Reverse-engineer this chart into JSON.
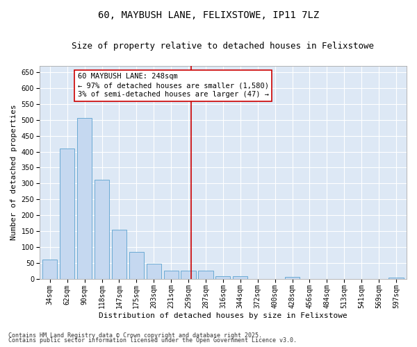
{
  "title1": "60, MAYBUSH LANE, FELIXSTOWE, IP11 7LZ",
  "title2": "Size of property relative to detached houses in Felixstowe",
  "xlabel": "Distribution of detached houses by size in Felixstowe",
  "ylabel": "Number of detached properties",
  "categories": [
    "34sqm",
    "62sqm",
    "90sqm",
    "118sqm",
    "147sqm",
    "175sqm",
    "203sqm",
    "231sqm",
    "259sqm",
    "287sqm",
    "316sqm",
    "344sqm",
    "372sqm",
    "400sqm",
    "428sqm",
    "456sqm",
    "484sqm",
    "513sqm",
    "541sqm",
    "569sqm",
    "597sqm"
  ],
  "values": [
    60,
    410,
    505,
    312,
    155,
    85,
    47,
    25,
    25,
    25,
    8,
    7,
    0,
    0,
    5,
    0,
    0,
    0,
    0,
    0,
    3
  ],
  "bar_color": "#c5d8f0",
  "bar_edge_color": "#6aaad4",
  "vline_x_index": 8.15,
  "vline_color": "#cc0000",
  "annotation_text": "60 MAYBUSH LANE: 248sqm\n← 97% of detached houses are smaller (1,580)\n3% of semi-detached houses are larger (47) →",
  "annotation_box_color": "#ffffff",
  "annotation_box_edge": "#cc0000",
  "ylim": [
    0,
    670
  ],
  "yticks": [
    0,
    50,
    100,
    150,
    200,
    250,
    300,
    350,
    400,
    450,
    500,
    550,
    600,
    650
  ],
  "background_color": "#dde8f5",
  "grid_color": "#ffffff",
  "footer1": "Contains HM Land Registry data © Crown copyright and database right 2025.",
  "footer2": "Contains public sector information licensed under the Open Government Licence v3.0.",
  "title_fontsize": 10,
  "subtitle_fontsize": 9,
  "axis_label_fontsize": 8,
  "tick_fontsize": 7,
  "annotation_fontsize": 7.5,
  "footer_fontsize": 6
}
